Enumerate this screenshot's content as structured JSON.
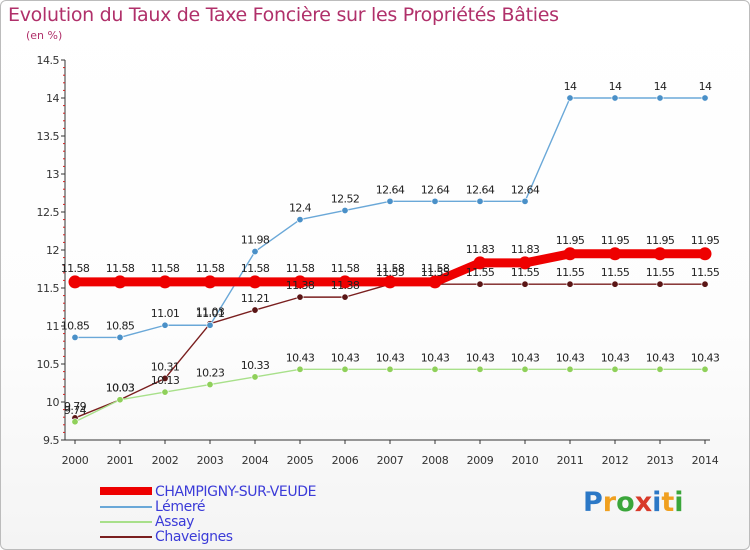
{
  "header": {
    "title": "Evolution du Taux de Taxe Foncière sur les Propriétés Bâties",
    "unit": "(en %)"
  },
  "chart_data": {
    "type": "line",
    "title": "Evolution du Taux de Taxe Foncière sur les Propriétés Bâties",
    "ylabel": "(en %)",
    "xlabel": "",
    "ylim": [
      9.5,
      14.5
    ],
    "yticks": [
      9.5,
      10,
      10.5,
      11,
      11.5,
      12,
      12.5,
      13,
      13.5,
      14,
      14.5
    ],
    "grid": false,
    "legend_position": "bottom-left",
    "categories": [
      "2000",
      "2001",
      "2002",
      "2003",
      "2004",
      "2005",
      "2006",
      "2007",
      "2008",
      "2009",
      "2010",
      "2011",
      "2012",
      "2013",
      "2014"
    ],
    "series": [
      {
        "name": "Chaveignes",
        "color": "#7a1f1f",
        "marker": "#5a1515",
        "values": [
          9.79,
          10.03,
          10.31,
          11.03,
          11.21,
          11.38,
          11.38,
          11.55,
          11.55,
          11.55,
          11.55,
          11.55,
          11.55,
          11.55,
          11.55
        ],
        "labels": [
          "9.79",
          "10.03",
          "10.31",
          "11.03",
          "11.21",
          "11.38",
          "11.38",
          "11.55",
          "11.55",
          "11.55",
          "11.55",
          "11.55",
          "11.55",
          "11.55",
          "11.55"
        ]
      },
      {
        "name": "Assay",
        "color": "#a8e08a",
        "marker": "#8fd05a",
        "values": [
          9.74,
          10.03,
          10.13,
          10.23,
          10.33,
          10.43,
          10.43,
          10.43,
          10.43,
          10.43,
          10.43,
          10.43,
          10.43,
          10.43,
          10.43
        ],
        "labels": [
          "9.74",
          "10.03",
          "10.13",
          "10.23",
          "10.33",
          "10.43",
          "10.43",
          "10.43",
          "10.43",
          "10.43",
          "10.43",
          "10.43",
          "10.43",
          "10.43",
          "10.43"
        ]
      },
      {
        "name": "Lémeré",
        "color": "#6aa8d8",
        "marker": "#4a90c8",
        "values": [
          10.85,
          10.85,
          11.01,
          11.01,
          11.98,
          12.4,
          12.52,
          12.64,
          12.64,
          12.64,
          12.64,
          14,
          14,
          14,
          14
        ],
        "labels": [
          "10.85",
          "10.85",
          "11.01",
          "11.01",
          "11.98",
          "12.4",
          "12.52",
          "12.64",
          "12.64",
          "12.64",
          "12.64",
          "14",
          "14",
          "14",
          "14"
        ]
      },
      {
        "name": "CHAMPIGNY-SUR-VEUDE",
        "color": "#ee0000",
        "marker": "#ee0000",
        "values": [
          11.58,
          11.58,
          11.58,
          11.58,
          11.58,
          11.58,
          11.58,
          11.58,
          11.58,
          11.83,
          11.83,
          11.95,
          11.95,
          11.95,
          11.95
        ],
        "labels": [
          "11.58",
          "11.58",
          "11.58",
          "11.58",
          "11.58",
          "11.58",
          "11.58",
          "11.58",
          "11.58",
          "11.83",
          "11.83",
          "11.95",
          "11.95",
          "11.95",
          "11.95"
        ]
      }
    ]
  },
  "legend": {
    "items": [
      {
        "label": "CHAMPIGNY-SUR-VEUDE",
        "color": "#ee0000"
      },
      {
        "label": "Lémeré",
        "color": "#6aa8d8"
      },
      {
        "label": "Assay",
        "color": "#a8e08a"
      },
      {
        "label": "Chaveignes",
        "color": "#7a1f1f"
      }
    ]
  },
  "logo": {
    "letters": [
      "P",
      "r",
      "o",
      "x",
      "i",
      "t",
      "i"
    ]
  }
}
